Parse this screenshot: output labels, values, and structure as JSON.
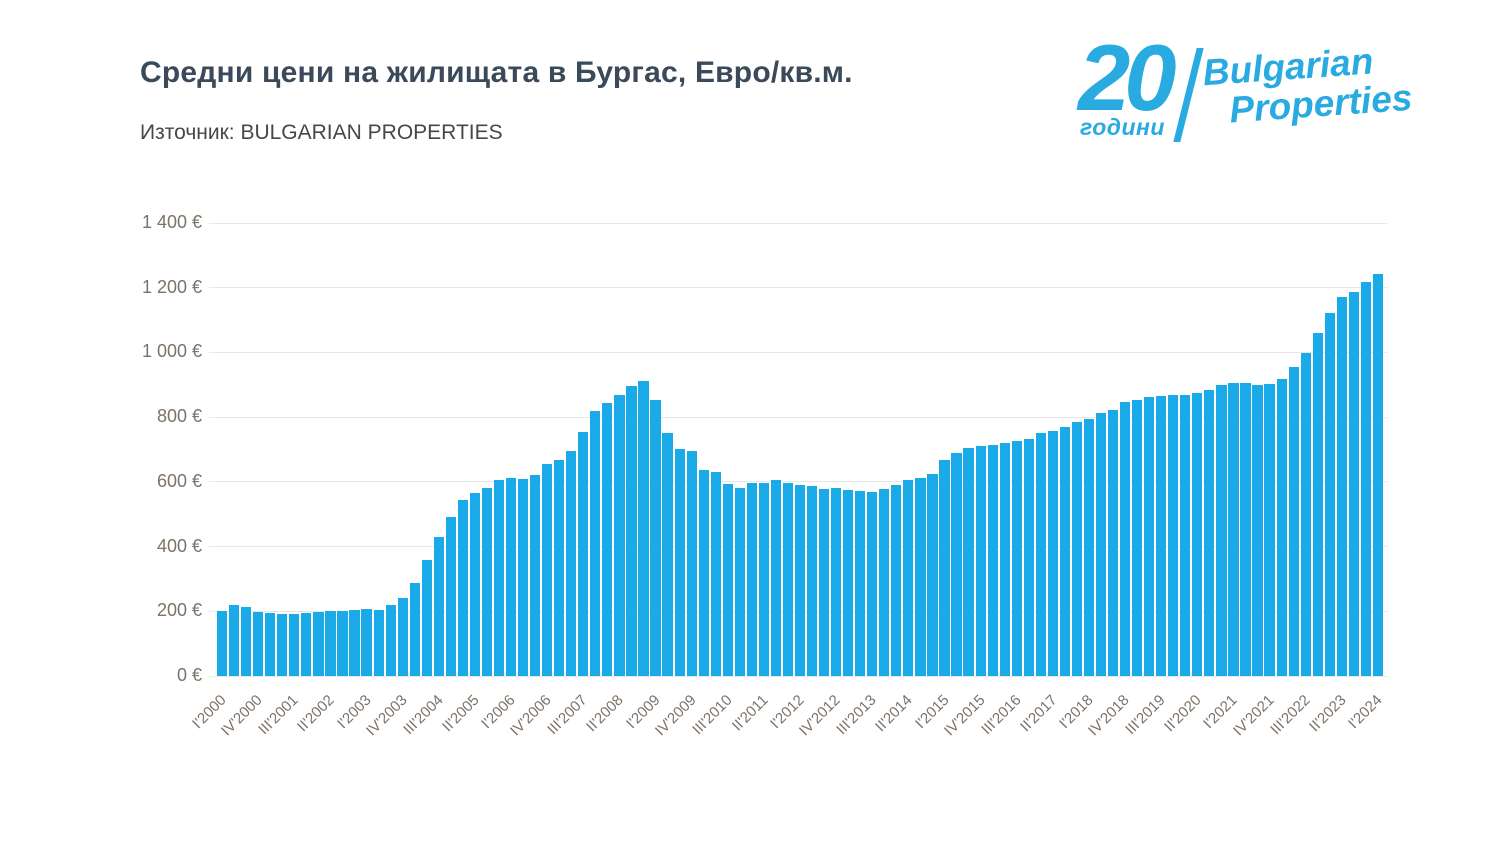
{
  "header": {
    "title": "Средни цени на жилищата в Бургас, Евро/кв.м.",
    "source": "Източник: BULGARIAN PROPERTIES"
  },
  "logo": {
    "years_number": "20",
    "years_word": "години",
    "brand_line1": "Bulgarian",
    "brand_line2": "Properties",
    "color": "#29abe2"
  },
  "chart_data": {
    "type": "bar",
    "title": "Средни цени на жилищата в Бургас, Евро/кв.м.",
    "source": "Източник: BULGARIAN PROPERTIES",
    "unit": "EUR/sq.m",
    "bar_color": "#1baae8",
    "grid": true,
    "legend": "none",
    "ylim": [
      0,
      1400
    ],
    "ytick_step": 200,
    "ytick_labels": [
      "0 €",
      "200 €",
      "400 €",
      "600 €",
      "800 €",
      "1 000 €",
      "1 200 €",
      "1 400 €"
    ],
    "xtick_every": 3,
    "categories": [
      "I'2000",
      "II'2000",
      "III'2000",
      "IV'2000",
      "I'2001",
      "II'2001",
      "III'2001",
      "IV'2001",
      "I'2002",
      "II'2002",
      "III'2002",
      "IV'2002",
      "I'2003",
      "II'2003",
      "III'2003",
      "IV'2003",
      "I'2004",
      "II'2004",
      "III'2004",
      "IV'2004",
      "I'2005",
      "II'2005",
      "III'2005",
      "IV'2005",
      "I'2006",
      "II'2006",
      "III'2006",
      "IV'2006",
      "I'2007",
      "II'2007",
      "III'2007",
      "IV'2007",
      "I'2008",
      "II'2008",
      "III'2008",
      "IV'2008",
      "I'2009",
      "II'2009",
      "III'2009",
      "IV'2009",
      "I'2010",
      "II'2010",
      "III'2010",
      "IV'2010",
      "I'2011",
      "II'2011",
      "III'2011",
      "IV'2011",
      "I'2012",
      "II'2012",
      "III'2012",
      "IV'2012",
      "I'2013",
      "II'2013",
      "III'2013",
      "IV'2013",
      "I'2014",
      "II'2014",
      "III'2014",
      "IV'2014",
      "I'2015",
      "II'2015",
      "III'2015",
      "IV'2015",
      "I'2016",
      "II'2016",
      "III'2016",
      "IV'2016",
      "I'2017",
      "II'2017",
      "III'2017",
      "IV'2017",
      "I'2018",
      "II'2018",
      "III'2018",
      "IV'2018",
      "I'2019",
      "II'2019",
      "III'2019",
      "IV'2019",
      "I'2020",
      "II'2020",
      "III'2020",
      "IV'2020",
      "I'2021",
      "II'2021",
      "III'2021",
      "IV'2021",
      "I'2022",
      "II'2022",
      "III'2022",
      "IV'2022",
      "I'2023",
      "II'2023",
      "III'2023",
      "IV'2023",
      "I'2024"
    ],
    "values": [
      202,
      219,
      212,
      198,
      195,
      193,
      191,
      196,
      198,
      200,
      202,
      204,
      206,
      204,
      220,
      240,
      288,
      360,
      430,
      490,
      543,
      566,
      582,
      605,
      613,
      608,
      622,
      654,
      667,
      695,
      754,
      820,
      843,
      867,
      895,
      913,
      854,
      752,
      703,
      695,
      638,
      630,
      592,
      582,
      595,
      598,
      605,
      597,
      591,
      586,
      579,
      582,
      576,
      572,
      569,
      579,
      589,
      605,
      613,
      625,
      669,
      690,
      706,
      710,
      714,
      720,
      726,
      733,
      751,
      757,
      771,
      785,
      795,
      813,
      823,
      846,
      854,
      862,
      864,
      868,
      870,
      874,
      885,
      899,
      905,
      905,
      898,
      901,
      919,
      955,
      998,
      1059,
      1121,
      1170,
      1186,
      1217,
      1243
    ]
  }
}
